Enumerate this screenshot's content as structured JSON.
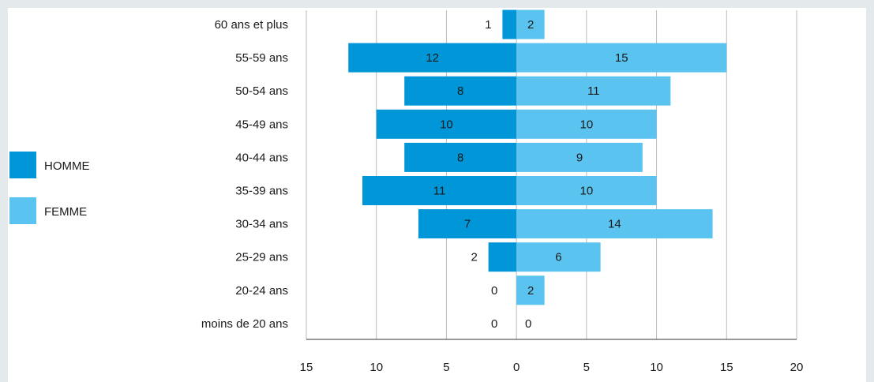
{
  "chart_data": {
    "type": "bar",
    "orientation": "horizontal",
    "layout": "population-pyramid",
    "categories": [
      "60 ans et plus",
      "55-59 ans",
      "50-54 ans",
      "45-49 ans",
      "40-44 ans",
      "35-39 ans",
      "30-34 ans",
      "25-29 ans",
      "20-24 ans",
      "moins de 20 ans"
    ],
    "series": [
      {
        "name": "HOMME",
        "side": "left",
        "color": "#0096d8",
        "values": [
          1,
          12,
          8,
          10,
          8,
          11,
          7,
          2,
          0,
          0
        ]
      },
      {
        "name": "FEMME",
        "side": "right",
        "color": "#5bc3ef",
        "values": [
          2,
          15,
          11,
          10,
          9,
          10,
          14,
          6,
          2,
          0
        ]
      }
    ],
    "xlim": [
      -15,
      20
    ],
    "xticks": [
      -15,
      -10,
      -5,
      0,
      5,
      10,
      15,
      20
    ],
    "xtick_labels": [
      "15",
      "10",
      "5",
      "0",
      "5",
      "10",
      "15",
      "20"
    ],
    "title": "",
    "xlabel": "",
    "ylabel": "",
    "grid": "vertical",
    "legend": "left"
  },
  "colors": {
    "homme": "#0096d8",
    "femme": "#5bc3ef",
    "grid": "#bbbbbb",
    "axis": "#333333"
  }
}
